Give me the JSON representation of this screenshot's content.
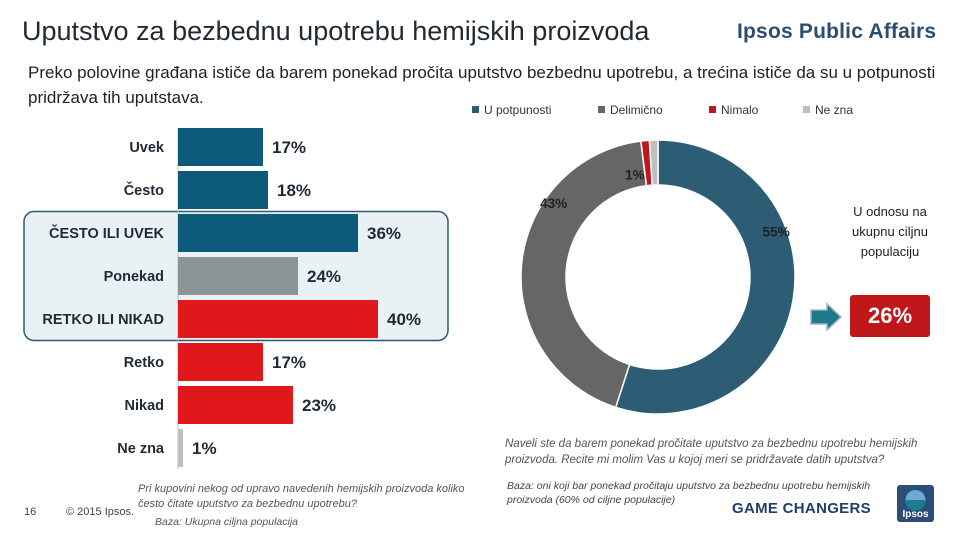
{
  "title": "Uputstvo za bezbednu upotrebu hemijskih proizvoda",
  "brand": "Ipsos Public Affairs",
  "subtitle": "Preko polovine građana ističe da barem ponekad pročita uputstvo bezbednu upotrebu, a trećina ističe da su u potpunosti pridržava tih uputstava.",
  "legend": [
    {
      "label": "U potpunosti",
      "color": "#2c5d75"
    },
    {
      "label": "Delimično",
      "color": "#666666"
    },
    {
      "label": "Nimalo",
      "color": "#c0181a"
    },
    {
      "label": "Ne zna",
      "color": "#bfbfbf"
    }
  ],
  "chart_data": [
    {
      "type": "bar",
      "orientation": "horizontal",
      "categories": [
        "Uvek",
        "Često",
        "ČESTO ILI UVEK",
        "Ponekad",
        "RETKO ILI NIKAD",
        "Retko",
        "Nikad",
        "Ne zna"
      ],
      "values": [
        17,
        18,
        36,
        24,
        40,
        17,
        23,
        1
      ],
      "value_labels": [
        "17%",
        "18%",
        "36%",
        "24%",
        "40%",
        "17%",
        "23%",
        "1%"
      ],
      "colors": [
        "#0e5a7a",
        "#0e5a7a",
        "#0e5a7a",
        "#8c9496",
        "#e0181b",
        "#e0181b",
        "#e0181b",
        "#bfbfbf"
      ],
      "highlighted": [
        "ČESTO ILI UVEK",
        "Ponekad",
        "RETKO ILI NIKAD"
      ],
      "xlim": [
        0,
        40
      ]
    },
    {
      "type": "pie",
      "style": "donut",
      "categories": [
        "U potpunosti",
        "Delimično",
        "Nimalo",
        "Ne zna"
      ],
      "values": [
        55,
        43,
        1,
        1
      ],
      "value_labels": [
        "55%",
        "43%",
        "1%",
        "1%"
      ],
      "colors": [
        "#2c5d75",
        "#666666",
        "#c0181a",
        "#bfbfbf"
      ]
    }
  ],
  "callout": {
    "text": "U odnosu na ukupnu ciljnu populaciju",
    "value": "26%"
  },
  "question_right": "Naveli ste da barem ponekad pročitate uputstvo za bezbednu upotrebu hemijskih proizvoda. Recite mi molim Vas u kojoj meri se pridržavate datih uputstva?",
  "base_right": "Baza: oni koji bar ponekad pročitaju uputstvo za bezbednu upotrebu hemijskih proizvoda (60% od ciljne populacije)",
  "game_changers": "GAME CHANGERS",
  "page_number": "16",
  "copyright": "© 2015 Ipsos.",
  "question_left": "Pri kupovini nekog od upravo navedenih hemijskih proizvoda koliko često čitate uputstvo za bezbednu upotrebu?",
  "base_left": "Baza: Ukupna ciljna populacija",
  "logo_text": "Ipsos"
}
